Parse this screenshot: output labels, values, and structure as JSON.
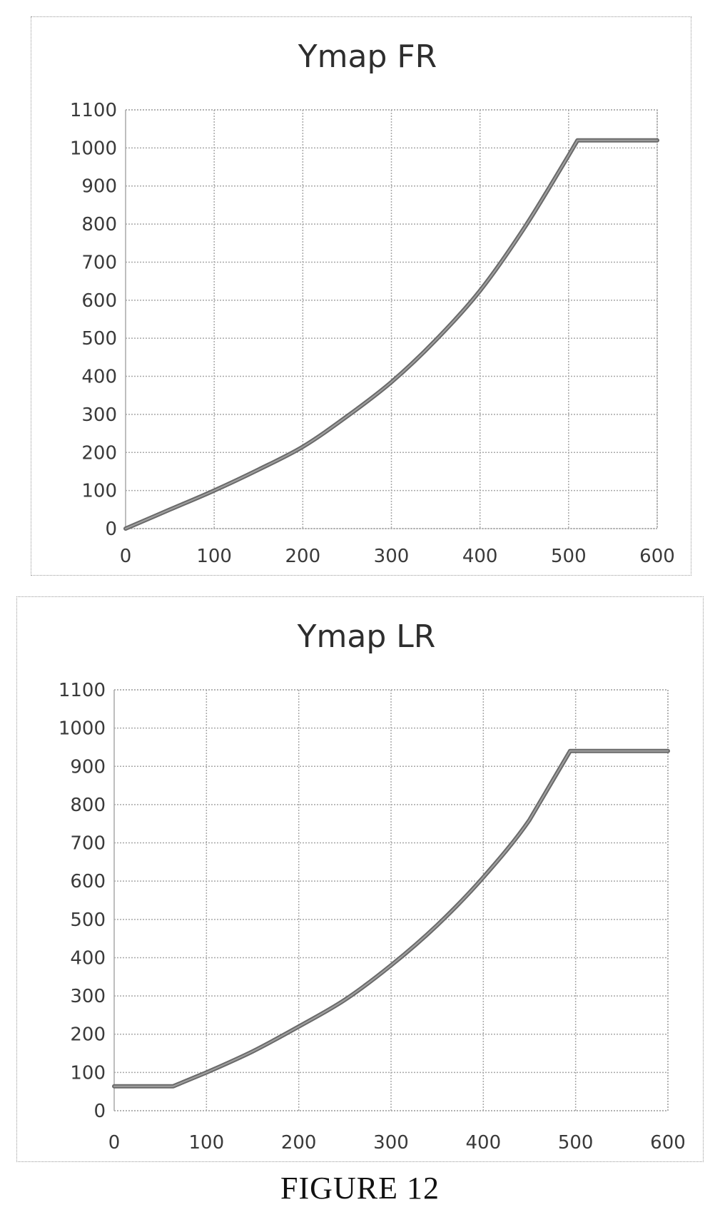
{
  "figure_caption": "FIGURE 12",
  "chart_data": [
    {
      "type": "line",
      "title": "Ymap FR",
      "xlabel": "",
      "ylabel": "",
      "xlim": [
        0,
        600
      ],
      "ylim": [
        0,
        1100
      ],
      "x_ticks": [
        0,
        100,
        200,
        300,
        400,
        500,
        600
      ],
      "y_ticks": [
        0,
        100,
        200,
        300,
        400,
        500,
        600,
        700,
        800,
        900,
        1000,
        1100
      ],
      "grid": true,
      "legend": "none",
      "line_color": "#808080",
      "series": [
        {
          "x": [
            0,
            50,
            100,
            150,
            200,
            250,
            300,
            350,
            400,
            450,
            500,
            510,
            600
          ],
          "y": [
            0,
            50,
            100,
            155,
            215,
            295,
            385,
            495,
            625,
            790,
            980,
            1020,
            1020
          ]
        }
      ]
    },
    {
      "type": "line",
      "title": "Ymap LR",
      "xlabel": "",
      "ylabel": "",
      "xlim": [
        0,
        600
      ],
      "ylim": [
        0,
        1100
      ],
      "x_ticks": [
        0,
        100,
        200,
        300,
        400,
        500,
        600
      ],
      "y_ticks": [
        0,
        100,
        200,
        300,
        400,
        500,
        600,
        700,
        800,
        900,
        1000,
        1100
      ],
      "grid": true,
      "legend": "none",
      "line_color": "#808080",
      "series": [
        {
          "x": [
            0,
            64,
            100,
            150,
            200,
            250,
            300,
            350,
            400,
            450,
            494,
            600
          ],
          "y": [
            64,
            64,
            100,
            155,
            220,
            290,
            380,
            485,
            610,
            760,
            940,
            940
          ]
        }
      ]
    }
  ]
}
